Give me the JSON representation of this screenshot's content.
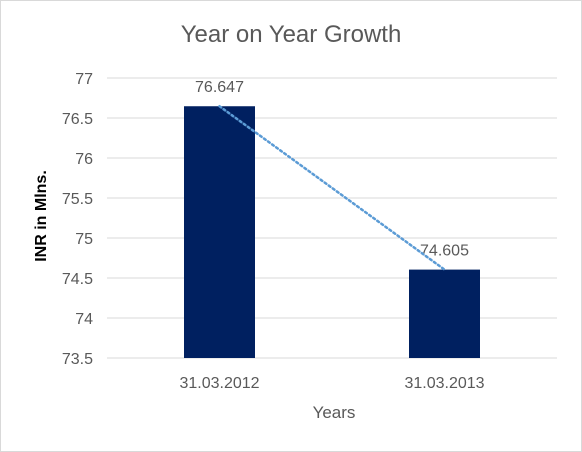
{
  "chart_data": {
    "type": "bar",
    "title": "Year on Year Growth",
    "xlabel": "Years",
    "ylabel": "INR in Mlns.",
    "categories": [
      "31.03.2012",
      "31.03.2013"
    ],
    "values": [
      76.647,
      74.605
    ],
    "data_labels": [
      "76.647",
      "74.605"
    ],
    "ylim": [
      73.5,
      77
    ],
    "y_ticks": [
      "73.5",
      "74",
      "74.5",
      "75",
      "75.5",
      "76",
      "76.5",
      "77"
    ],
    "grid": true,
    "legend": "none",
    "trendline": "linear",
    "colors": {
      "bar": "#002060",
      "trendline": "#5b9bd5",
      "grid": "#d9d9d9",
      "text": "#595959"
    }
  }
}
